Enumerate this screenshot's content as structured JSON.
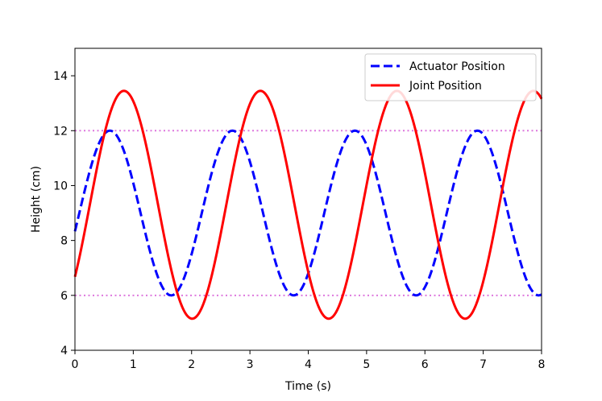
{
  "chart_data": {
    "type": "line",
    "title": "",
    "xlabel": "Time (s)",
    "ylabel": "Height (cm)",
    "xlim": [
      0,
      8
    ],
    "ylim": [
      4,
      15
    ],
    "xticks": [
      "0",
      "1",
      "2",
      "3",
      "4",
      "5",
      "6",
      "7",
      "8"
    ],
    "yticks": [
      "4",
      "6",
      "8",
      "10",
      "12",
      "14"
    ],
    "grid": false,
    "legend_position": "top-right",
    "series": [
      {
        "name": "Actuator Position",
        "color": "#0000ff",
        "style": "dashed",
        "model": "sine",
        "offset": 9.0,
        "amplitude": 3.0,
        "period": 2.1,
        "phase_shift": 0.075
      },
      {
        "name": "Joint Position",
        "color": "#ff0000",
        "style": "solid",
        "model": "sine",
        "offset": 9.3,
        "amplitude": 4.15,
        "period": 2.34,
        "phase_shift": 0.255
      }
    ],
    "reference_lines": [
      {
        "y": 12,
        "color": "#dd77dd",
        "style": "dotted"
      },
      {
        "y": 6,
        "color": "#dd77dd",
        "style": "dotted"
      }
    ]
  }
}
